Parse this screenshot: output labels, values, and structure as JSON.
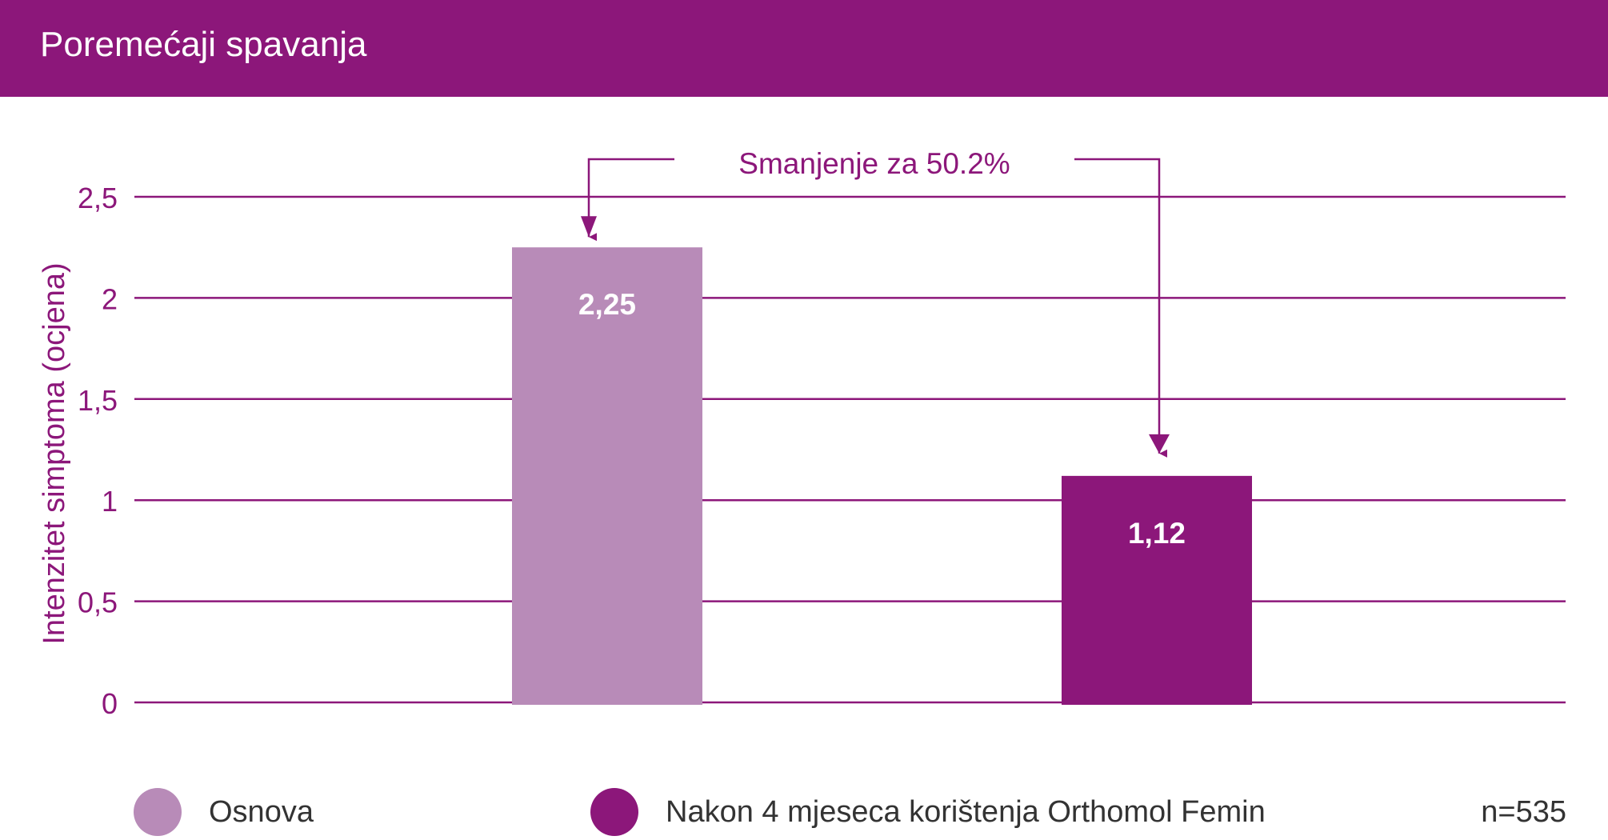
{
  "header": {
    "title": "Poremećaji spavanja"
  },
  "colors": {
    "header_bg": "#8c177a",
    "accent": "#8c177a",
    "baseline_bar": "#b88bb8",
    "after_bar": "#8c177a"
  },
  "chart_data": {
    "type": "bar",
    "title": "Poremećaji spavanja",
    "ylabel": "Intenzitet simptoma (ocjena)",
    "xlabel": "",
    "ylim": [
      0,
      2.5
    ],
    "grid": true,
    "y_ticks": [
      {
        "value": 0,
        "label": "0"
      },
      {
        "value": 0.5,
        "label": "0,5"
      },
      {
        "value": 1,
        "label": "1"
      },
      {
        "value": 1.5,
        "label": "1,5"
      },
      {
        "value": 2,
        "label": "2"
      },
      {
        "value": 2.5,
        "label": "2,5"
      }
    ],
    "bars": [
      {
        "category": "Osnova",
        "value": 2.25,
        "label": "2,25",
        "color": "#b88bb8"
      },
      {
        "category": "Nakon 4 mjeseca korištenja Orthomol Femin",
        "value": 1.12,
        "label": "1,12",
        "color": "#8c177a"
      }
    ],
    "annotation": "Smanjenje za 50.2%",
    "legend_position": "bottom",
    "sample_size": "n=535"
  },
  "legend": {
    "items": [
      {
        "label": "Osnova",
        "color": "#b88bb8"
      },
      {
        "label": "Nakon 4 mjeseca korištenja Orthomol Femin",
        "color": "#8c177a"
      }
    ],
    "sample_size": "n=535"
  }
}
